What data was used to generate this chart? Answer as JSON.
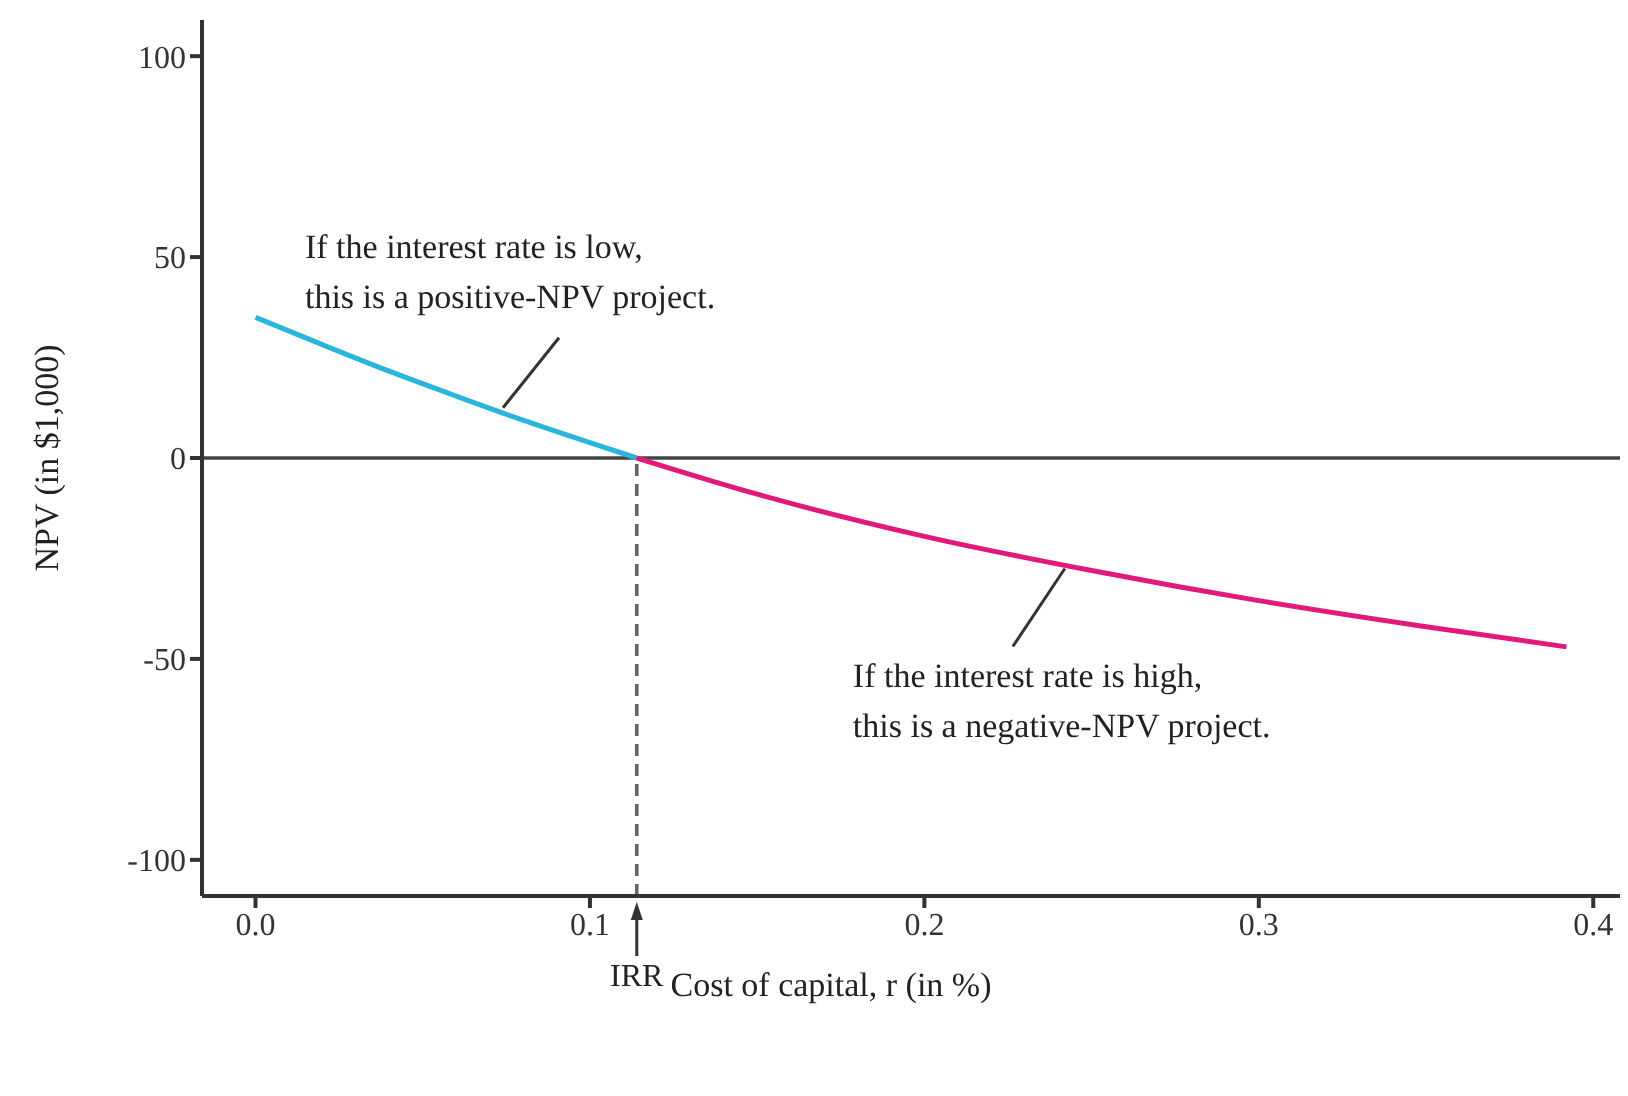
{
  "chart_data": {
    "type": "line",
    "xlabel": "Cost of capital, r (in %)",
    "ylabel": "NPV (in $1,000)",
    "xlim": [
      -0.016,
      0.408
    ],
    "ylim": [
      -109,
      109
    ],
    "xticks": [
      {
        "value": 0,
        "label": "0.0"
      },
      0.1,
      0.2,
      0.3,
      0.4
    ],
    "yticks": [
      -100,
      -50,
      0,
      50,
      100
    ],
    "marker": "none",
    "line_style": "solid",
    "series": [
      {
        "color": "#29b5dc",
        "x": [
          0,
          0.02,
          0.04,
          0.06,
          0.08,
          0.1,
          0.114
        ],
        "values": [
          35,
          28.2,
          21.6,
          15.4,
          9.4,
          3.8,
          0
        ]
      },
      {
        "color": "#e0197a",
        "x": [
          0.114,
          0.15,
          0.2,
          0.25,
          0.3,
          0.35,
          0.392
        ],
        "values": [
          0,
          -9,
          -19.5,
          -28,
          -35.5,
          -42,
          -47
        ]
      }
    ],
    "ref_lines": [
      {
        "axis": "x",
        "value": 0.114,
        "label": "IRR",
        "line_style": "dashed",
        "color": "#666666"
      },
      {
        "axis": "y",
        "value": 0,
        "label": null,
        "line_style": "solid",
        "color": "#444444"
      }
    ],
    "annotations": [
      {
        "text": "If the interest rate is low,\nthis is a positive-NPV project.",
        "x": 0.074,
        "y": 12.5
      },
      {
        "text": "If the interest rate is high,\nthis is a negative-NPV project.",
        "x": 0.242,
        "y": -27.5
      }
    ]
  }
}
